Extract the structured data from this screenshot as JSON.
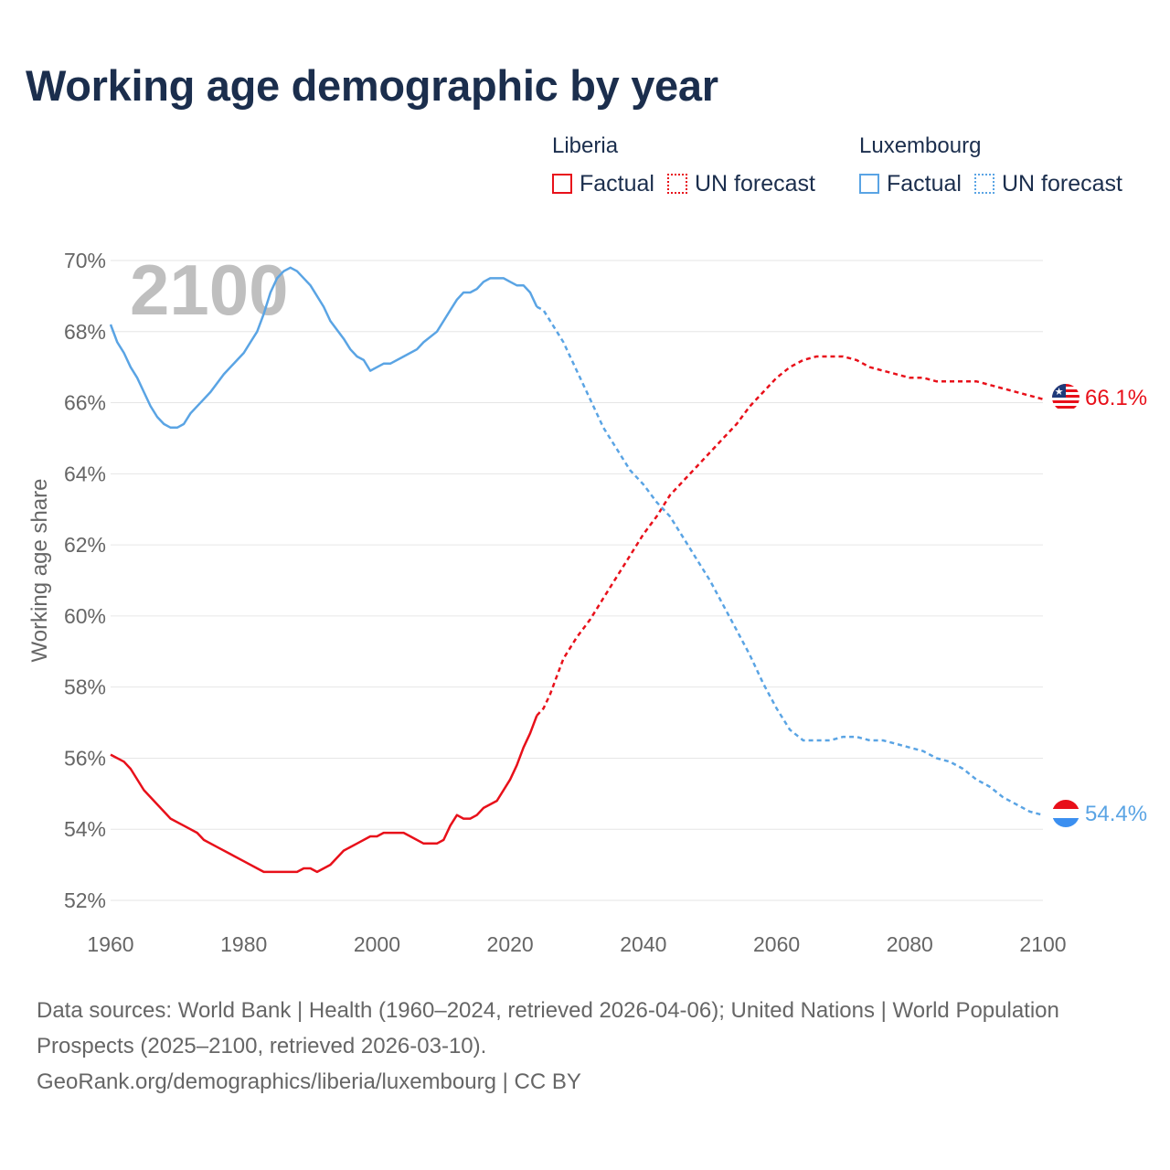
{
  "title": "Working age demographic by year",
  "legend": {
    "liberia": {
      "name": "Liberia",
      "factual": "Factual",
      "forecast": "UN forecast"
    },
    "luxembourg": {
      "name": "Luxembourg",
      "factual": "Factual",
      "forecast": "UN forecast"
    }
  },
  "colors": {
    "liberia": "#e8101a",
    "luxembourg": "#5aa4e4",
    "title": "#1b2e4d",
    "axis_text": "#666666",
    "grid": "#e6e6e6",
    "year_watermark": "#bfbfbf"
  },
  "chart_data": {
    "type": "line",
    "title": "Working age demographic by year",
    "ylabel": "Working age share",
    "xlabel": "",
    "xlim": [
      1960,
      2100
    ],
    "ylim": [
      52,
      70
    ],
    "x_ticks": [
      "1960",
      "1980",
      "2000",
      "2020",
      "2040",
      "2060",
      "2080",
      "2100"
    ],
    "y_ticks": [
      "52%",
      "54%",
      "56%",
      "58%",
      "60%",
      "62%",
      "64%",
      "66%",
      "68%",
      "70%"
    ],
    "year_label": "2100",
    "factual_range": [
      1960,
      2024
    ],
    "forecast_range": [
      2025,
      2100
    ],
    "series": [
      {
        "name": "Liberia",
        "color_key": "liberia",
        "end_label": "66.1%",
        "flag": "liberia-flag",
        "points": [
          [
            1960,
            56.1
          ],
          [
            1962,
            55.9
          ],
          [
            1963,
            55.7
          ],
          [
            1965,
            55.1
          ],
          [
            1967,
            54.7
          ],
          [
            1969,
            54.3
          ],
          [
            1971,
            54.1
          ],
          [
            1973,
            53.9
          ],
          [
            1974,
            53.7
          ],
          [
            1976,
            53.5
          ],
          [
            1978,
            53.3
          ],
          [
            1980,
            53.1
          ],
          [
            1982,
            52.9
          ],
          [
            1983,
            52.8
          ],
          [
            1985,
            52.8
          ],
          [
            1988,
            52.8
          ],
          [
            1989,
            52.9
          ],
          [
            1990,
            52.9
          ],
          [
            1991,
            52.8
          ],
          [
            1993,
            53.0
          ],
          [
            1995,
            53.4
          ],
          [
            1997,
            53.6
          ],
          [
            1999,
            53.8
          ],
          [
            2000,
            53.8
          ],
          [
            2001,
            53.9
          ],
          [
            2004,
            53.9
          ],
          [
            2005,
            53.8
          ],
          [
            2007,
            53.6
          ],
          [
            2009,
            53.6
          ],
          [
            2010,
            53.7
          ],
          [
            2011,
            54.1
          ],
          [
            2012,
            54.4
          ],
          [
            2013,
            54.3
          ],
          [
            2014,
            54.3
          ],
          [
            2015,
            54.4
          ],
          [
            2016,
            54.6
          ],
          [
            2018,
            54.8
          ],
          [
            2020,
            55.4
          ],
          [
            2021,
            55.8
          ],
          [
            2022,
            56.3
          ],
          [
            2023,
            56.7
          ],
          [
            2024,
            57.2
          ],
          [
            2025,
            57.4
          ],
          [
            2026,
            57.8
          ],
          [
            2027,
            58.3
          ],
          [
            2028,
            58.8
          ],
          [
            2030,
            59.4
          ],
          [
            2032,
            59.9
          ],
          [
            2034,
            60.5
          ],
          [
            2036,
            61.1
          ],
          [
            2038,
            61.7
          ],
          [
            2040,
            62.3
          ],
          [
            2042,
            62.8
          ],
          [
            2044,
            63.4
          ],
          [
            2046,
            63.8
          ],
          [
            2048,
            64.2
          ],
          [
            2050,
            64.6
          ],
          [
            2052,
            65.0
          ],
          [
            2054,
            65.4
          ],
          [
            2056,
            65.9
          ],
          [
            2058,
            66.3
          ],
          [
            2060,
            66.7
          ],
          [
            2062,
            67.0
          ],
          [
            2064,
            67.2
          ],
          [
            2066,
            67.3
          ],
          [
            2068,
            67.3
          ],
          [
            2070,
            67.3
          ],
          [
            2072,
            67.2
          ],
          [
            2074,
            67.0
          ],
          [
            2076,
            66.9
          ],
          [
            2078,
            66.8
          ],
          [
            2080,
            66.7
          ],
          [
            2082,
            66.7
          ],
          [
            2084,
            66.6
          ],
          [
            2086,
            66.6
          ],
          [
            2088,
            66.6
          ],
          [
            2090,
            66.6
          ],
          [
            2092,
            66.5
          ],
          [
            2094,
            66.4
          ],
          [
            2096,
            66.3
          ],
          [
            2098,
            66.2
          ],
          [
            2100,
            66.1
          ]
        ]
      },
      {
        "name": "Luxembourg",
        "color_key": "luxembourg",
        "end_label": "54.4%",
        "flag": "luxembourg-flag",
        "points": [
          [
            1960,
            68.2
          ],
          [
            1961,
            67.7
          ],
          [
            1962,
            67.4
          ],
          [
            1963,
            67.0
          ],
          [
            1964,
            66.7
          ],
          [
            1965,
            66.3
          ],
          [
            1966,
            65.9
          ],
          [
            1967,
            65.6
          ],
          [
            1968,
            65.4
          ],
          [
            1969,
            65.3
          ],
          [
            1970,
            65.3
          ],
          [
            1971,
            65.4
          ],
          [
            1972,
            65.7
          ],
          [
            1974,
            66.1
          ],
          [
            1975,
            66.3
          ],
          [
            1977,
            66.8
          ],
          [
            1979,
            67.2
          ],
          [
            1980,
            67.4
          ],
          [
            1981,
            67.7
          ],
          [
            1982,
            68.0
          ],
          [
            1983,
            68.5
          ],
          [
            1984,
            69.1
          ],
          [
            1985,
            69.5
          ],
          [
            1986,
            69.7
          ],
          [
            1987,
            69.8
          ],
          [
            1988,
            69.7
          ],
          [
            1990,
            69.3
          ],
          [
            1992,
            68.7
          ],
          [
            1993,
            68.3
          ],
          [
            1995,
            67.8
          ],
          [
            1996,
            67.5
          ],
          [
            1997,
            67.3
          ],
          [
            1998,
            67.2
          ],
          [
            1999,
            66.9
          ],
          [
            2000,
            67.0
          ],
          [
            2001,
            67.1
          ],
          [
            2002,
            67.1
          ],
          [
            2004,
            67.3
          ],
          [
            2006,
            67.5
          ],
          [
            2007,
            67.7
          ],
          [
            2009,
            68.0
          ],
          [
            2010,
            68.3
          ],
          [
            2011,
            68.6
          ],
          [
            2012,
            68.9
          ],
          [
            2013,
            69.1
          ],
          [
            2014,
            69.1
          ],
          [
            2015,
            69.2
          ],
          [
            2016,
            69.4
          ],
          [
            2017,
            69.5
          ],
          [
            2019,
            69.5
          ],
          [
            2020,
            69.4
          ],
          [
            2021,
            69.3
          ],
          [
            2022,
            69.3
          ],
          [
            2023,
            69.1
          ],
          [
            2024,
            68.7
          ],
          [
            2025,
            68.6
          ],
          [
            2026,
            68.3
          ],
          [
            2028,
            67.7
          ],
          [
            2030,
            66.9
          ],
          [
            2032,
            66.1
          ],
          [
            2034,
            65.3
          ],
          [
            2036,
            64.7
          ],
          [
            2038,
            64.1
          ],
          [
            2040,
            63.7
          ],
          [
            2042,
            63.2
          ],
          [
            2044,
            62.8
          ],
          [
            2046,
            62.2
          ],
          [
            2048,
            61.6
          ],
          [
            2050,
            61.0
          ],
          [
            2052,
            60.3
          ],
          [
            2054,
            59.6
          ],
          [
            2056,
            58.9
          ],
          [
            2058,
            58.1
          ],
          [
            2060,
            57.4
          ],
          [
            2062,
            56.8
          ],
          [
            2064,
            56.5
          ],
          [
            2066,
            56.5
          ],
          [
            2068,
            56.5
          ],
          [
            2070,
            56.6
          ],
          [
            2072,
            56.6
          ],
          [
            2074,
            56.5
          ],
          [
            2076,
            56.5
          ],
          [
            2078,
            56.4
          ],
          [
            2080,
            56.3
          ],
          [
            2082,
            56.2
          ],
          [
            2084,
            56.0
          ],
          [
            2086,
            55.9
          ],
          [
            2088,
            55.7
          ],
          [
            2090,
            55.4
          ],
          [
            2092,
            55.2
          ],
          [
            2094,
            54.9
          ],
          [
            2096,
            54.7
          ],
          [
            2098,
            54.5
          ],
          [
            2100,
            54.4
          ]
        ]
      }
    ]
  },
  "footer": {
    "line1": "Data sources: World Bank | Health (1960–2024, retrieved 2026-04-06); United Nations | World Population Prospects (2025–2100, retrieved 2026-03-10).",
    "line2": "GeoRank.org/demographics/liberia/luxembourg | CC BY"
  }
}
